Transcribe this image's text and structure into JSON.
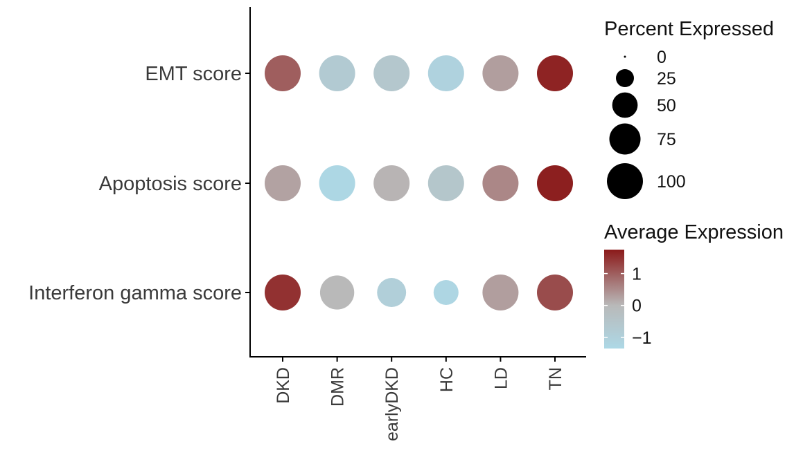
{
  "chart_data": {
    "type": "dot",
    "categories": [
      "DKD",
      "DMR",
      "earlyDKD",
      "HC",
      "LD",
      "TN"
    ],
    "rows": [
      "EMT score",
      "Apoptosis score",
      "Interferon gamma score"
    ],
    "series": [
      {
        "name": "EMT score",
        "avg_expression": [
          1.0,
          -0.75,
          -0.6,
          -1.1,
          0.3,
          1.65
        ],
        "percent_expressed": [
          100,
          100,
          100,
          100,
          100,
          100
        ]
      },
      {
        "name": "Apoptosis score",
        "avg_expression": [
          0.25,
          -1.3,
          0.05,
          -0.55,
          0.55,
          1.7
        ],
        "percent_expressed": [
          100,
          100,
          100,
          100,
          100,
          100
        ]
      },
      {
        "name": "Interferon gamma score",
        "avg_expression": [
          1.5,
          0.0,
          -0.95,
          -1.25,
          0.3,
          1.2
        ],
        "percent_expressed": [
          100,
          90,
          65,
          48,
          100,
          100
        ]
      }
    ],
    "size_legend": {
      "title": "Percent Expressed",
      "values": [
        0,
        25,
        50,
        75,
        100
      ],
      "labels": [
        "0",
        "25",
        "50",
        "75",
        "100"
      ]
    },
    "color_legend": {
      "title": "Average Expression",
      "range": [
        -1.35,
        1.75
      ],
      "ticks": [
        1,
        0,
        -1
      ],
      "tick_labels": [
        "1",
        "0",
        "−1"
      ],
      "low_color": "#add8e6",
      "mid_color": "#b9b9b9",
      "high_color": "#8b1a1a"
    },
    "xlabel": "",
    "ylabel": ""
  }
}
